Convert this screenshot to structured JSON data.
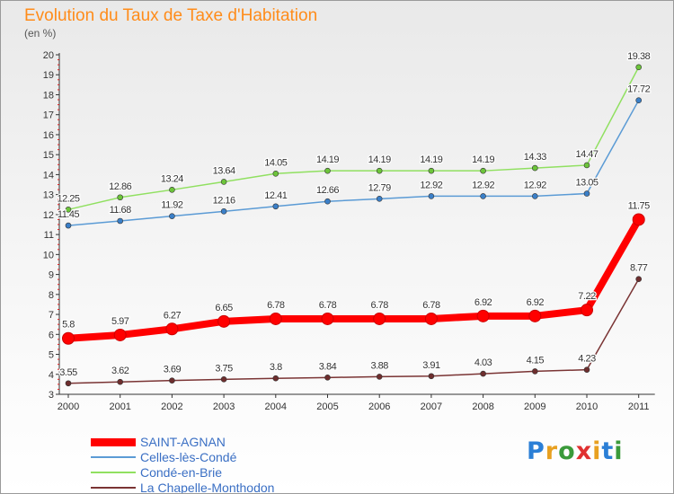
{
  "title": "Evolution du Taux de Taxe d'Habitation",
  "subtitle": "(en %)",
  "logo_text": "Proxiti",
  "chart_data": {
    "type": "line",
    "x": [
      "2000",
      "2001",
      "2002",
      "2003",
      "2004",
      "2005",
      "2006",
      "2007",
      "2008",
      "2009",
      "2010",
      "2011"
    ],
    "ylim": [
      3,
      20
    ],
    "yticks": [
      3,
      4,
      5,
      6,
      7,
      8,
      9,
      10,
      11,
      12,
      13,
      14,
      15,
      16,
      17,
      18,
      19,
      20
    ],
    "grid": false,
    "legend_position": "bottom-left",
    "series": [
      {
        "name": "SAINT-AGNAN",
        "color": "#ff0000",
        "label_color": "#ffffff",
        "emphasis": true,
        "values": [
          5.8,
          5.97,
          6.27,
          6.65,
          6.78,
          6.78,
          6.78,
          6.78,
          6.92,
          6.92,
          7.22,
          11.75
        ],
        "labels": [
          "5.8",
          "5.97",
          "6.27",
          "6.65",
          "6.78",
          "6.78",
          "6.78",
          "6.78",
          "6.92",
          "6.92",
          "7.22",
          "11.75"
        ]
      },
      {
        "name": "Celles-lès-Condé",
        "color": "#5b9bd5",
        "marker_color": "#3a7fc8",
        "emphasis": false,
        "values": [
          11.45,
          11.68,
          11.92,
          12.16,
          12.41,
          12.66,
          12.79,
          12.92,
          12.92,
          12.92,
          13.05,
          17.72
        ],
        "labels": [
          "11.45",
          "11.68",
          "11.92",
          "12.16",
          "12.41",
          "12.66",
          "12.79",
          "12.92",
          "12.92",
          "12.92",
          "13.05",
          "17.72"
        ]
      },
      {
        "name": "Condé-en-Brie",
        "color": "#90e060",
        "marker_color": "#6cc43a",
        "emphasis": false,
        "values": [
          12.25,
          12.86,
          13.24,
          13.64,
          14.05,
          14.19,
          14.19,
          14.19,
          14.19,
          14.33,
          14.47,
          19.38
        ],
        "labels": [
          "12.25",
          "12.86",
          "13.24",
          "13.64",
          "14.05",
          "14.19",
          "14.19",
          "14.19",
          "14.19",
          "14.33",
          "14.47",
          "19.38"
        ]
      },
      {
        "name": "La Chapelle-Monthodon",
        "color": "#7a3434",
        "marker_color": "#6e2e2e",
        "emphasis": false,
        "values": [
          3.55,
          3.62,
          3.69,
          3.75,
          3.8,
          3.84,
          3.88,
          3.91,
          4.03,
          4.15,
          4.23,
          8.77
        ],
        "labels": [
          "3.55",
          "3.62",
          "3.69",
          "3.75",
          "3.8",
          "3.84",
          "3.88",
          "3.91",
          "4.03",
          "4.15",
          "4.23",
          "8.77"
        ]
      }
    ]
  }
}
